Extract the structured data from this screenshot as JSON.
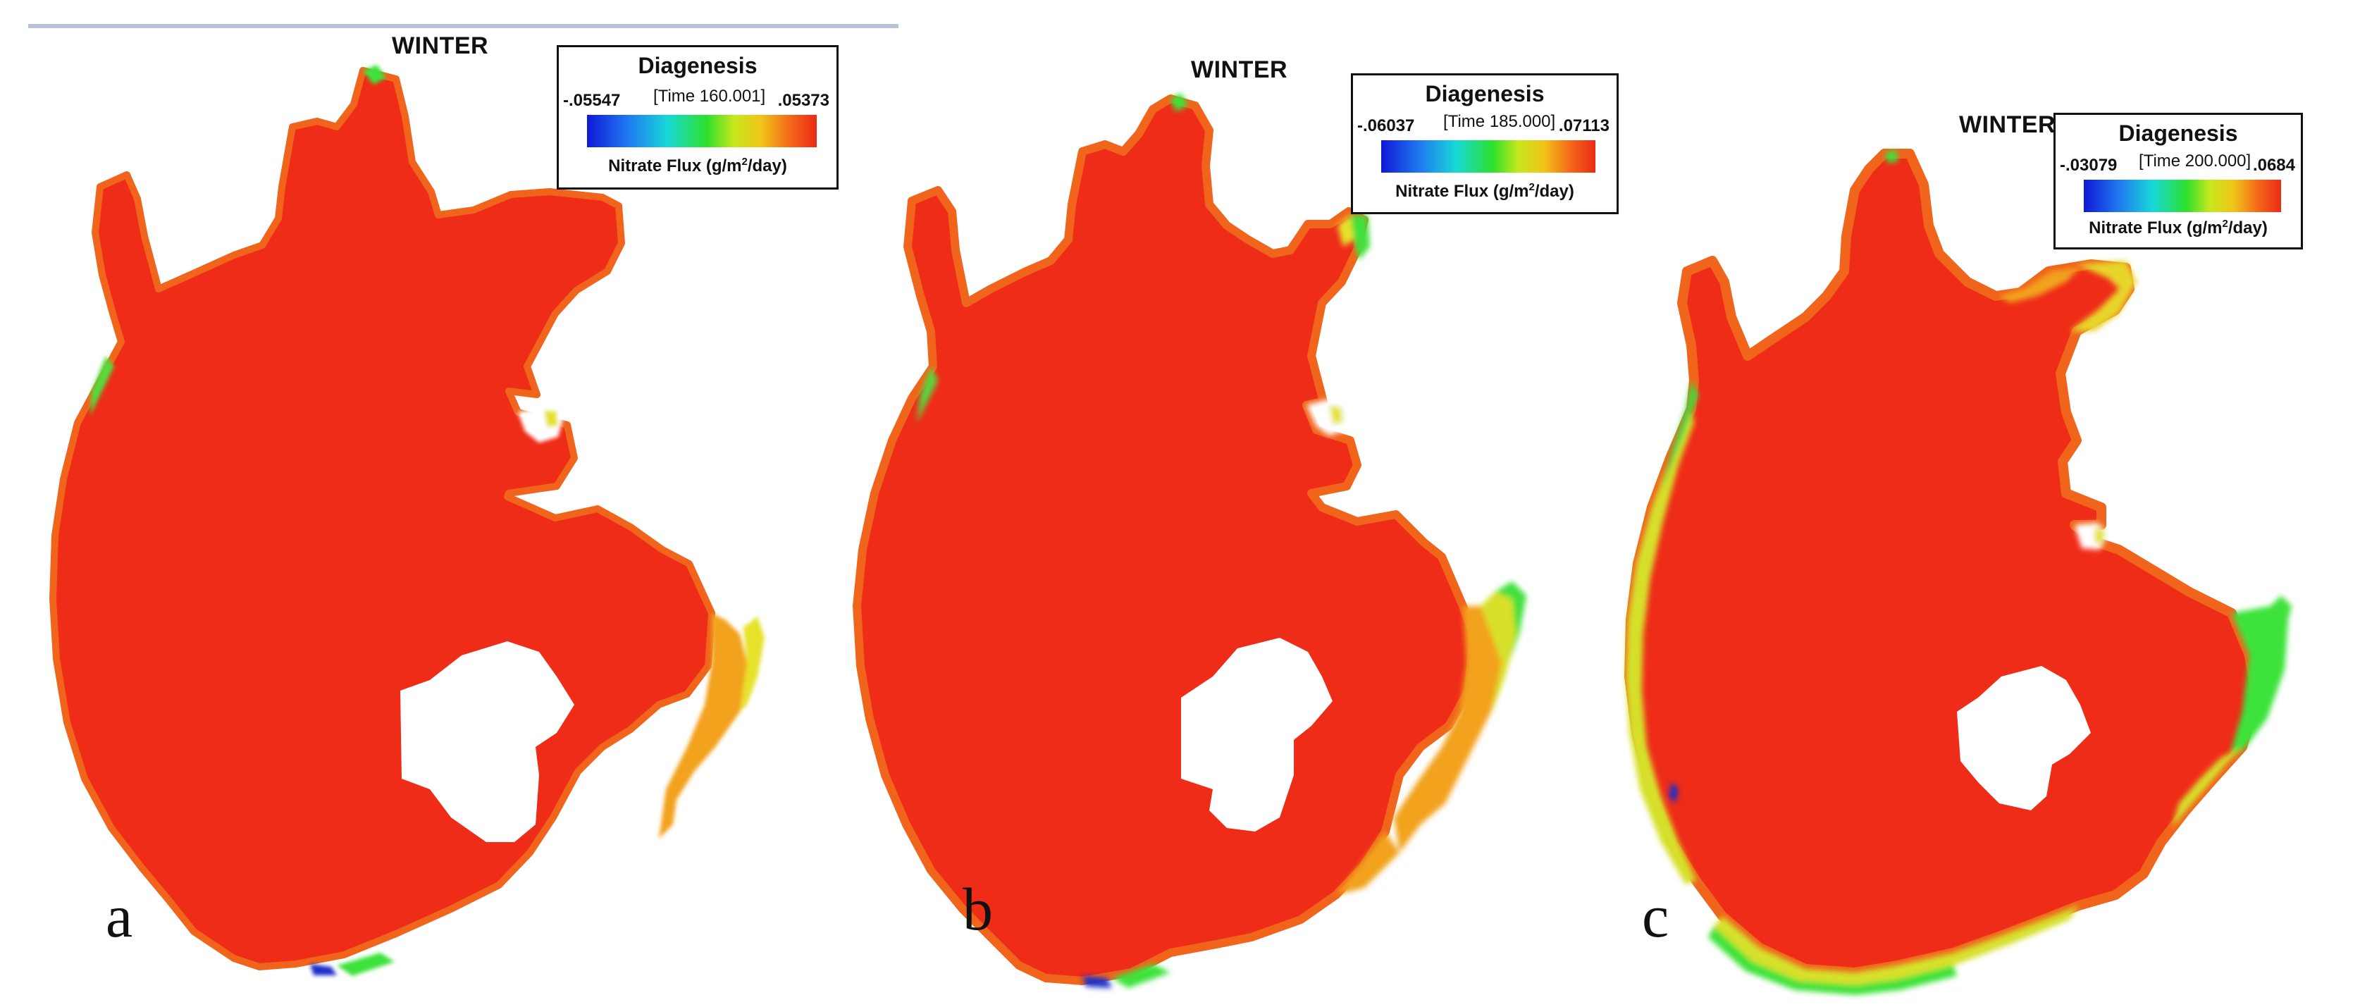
{
  "panels": [
    {
      "id": "a",
      "season": "WINTER",
      "letter": "a",
      "legend": {
        "title": "Diagenesis",
        "time": "[Time 160.001]",
        "min": "-.05547",
        "max": ".05373",
        "units_prefix": "Nitrate Flux (g/m",
        "units_sup": "2",
        "units_suffix": "/day)"
      }
    },
    {
      "id": "b",
      "season": "WINTER",
      "letter": "b",
      "legend": {
        "title": "Diagenesis",
        "time": "[Time 185.000]",
        "min": "-.06037",
        "max": ".07113",
        "units_prefix": "Nitrate Flux (g/m",
        "units_sup": "2",
        "units_suffix": "/day)"
      }
    },
    {
      "id": "c",
      "season": "WINTER",
      "letter": "c",
      "legend": {
        "title": "Diagenesis",
        "time": "[Time 200.000]",
        "min": "-.03079",
        "max": ".0684",
        "units_prefix": "Nitrate Flux (g/m",
        "units_sup": "2",
        "units_suffix": "/day)"
      }
    }
  ],
  "colors": {
    "dominant_flux": "#ee2c18",
    "shore_orange": "#f47a1e",
    "shore_yellow": "#e8e424",
    "shore_green": "#3ee23a",
    "shore_blue": "#1a2ec8",
    "top_rule": "#b8c4d6"
  }
}
